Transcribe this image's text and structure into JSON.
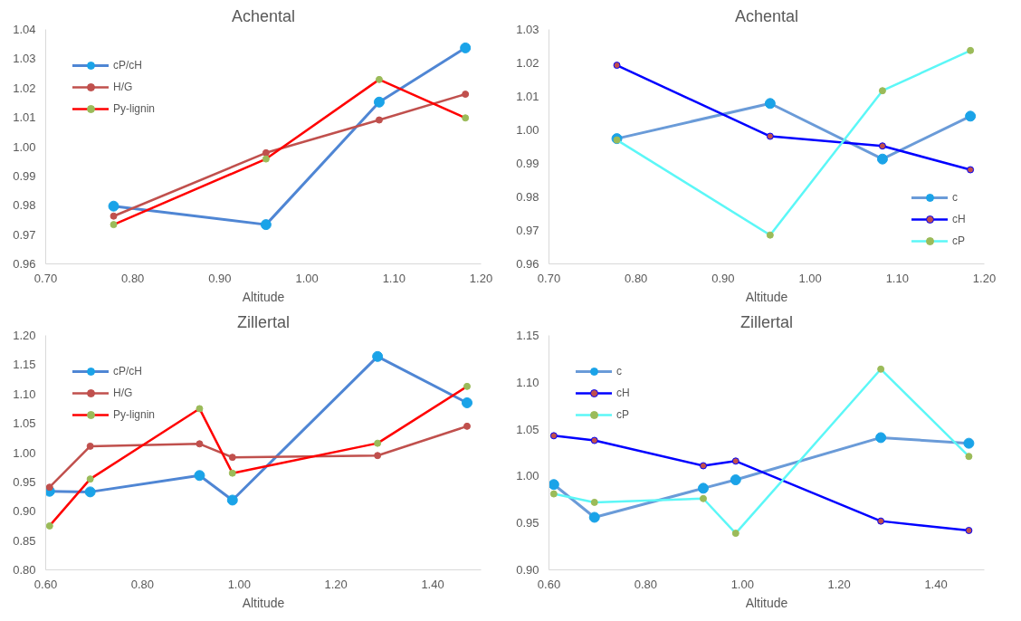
{
  "chart_data": [
    {
      "type": "line",
      "title": "Achental",
      "xlabel": "Altitude",
      "x": [
        0.778,
        0.953,
        1.083,
        1.182
      ],
      "xlim": [
        0.7,
        1.2
      ],
      "xticks": [
        {
          "value": 0.7,
          "label": "0.70"
        },
        {
          "value": 0.8,
          "label": "0.80"
        },
        {
          "value": 0.9,
          "label": "0.90"
        },
        {
          "value": 1.0,
          "label": "1.00"
        },
        {
          "value": 1.1,
          "label": "1.10"
        },
        {
          "value": 1.2,
          "label": "1.20"
        }
      ],
      "ylim": [
        0.96,
        1.04
      ],
      "yticks": [
        {
          "value": 0.96,
          "label": "0.96"
        },
        {
          "value": 0.97,
          "label": "0.97"
        },
        {
          "value": 0.98,
          "label": "0.98"
        },
        {
          "value": 0.99,
          "label": "0.99"
        },
        {
          "value": 1.0,
          "label": "1.00"
        },
        {
          "value": 1.01,
          "label": "1.01"
        },
        {
          "value": 1.02,
          "label": "1.02"
        },
        {
          "value": 1.03,
          "label": "1.03"
        },
        {
          "value": 1.04,
          "label": "1.04"
        }
      ],
      "grid": false,
      "legend": "top left",
      "marker": "circle",
      "line_style": "solid",
      "series": [
        {
          "name": "cP/cH",
          "color": "#4f86d4",
          "colors": [
            "#1aa3e8",
            "#1aa3e8",
            "#1aa3e8",
            "#1aa3e8"
          ],
          "values": [
            0.9797,
            0.9734,
            1.0152,
            1.0337
          ]
        },
        {
          "name": "H/G",
          "color": "#c0504d",
          "colors": [
            "#c0504d",
            "#c0504d",
            "#c0504d",
            "#c0504d"
          ],
          "values": [
            0.9763,
            0.9979,
            1.0091,
            1.0179
          ]
        },
        {
          "name": "Py-lignin",
          "color": "#ff0000",
          "colors": [
            "#9bbb59",
            "#9bbb59",
            "#9bbb59",
            "#9bbb59"
          ],
          "values": [
            0.9734,
            0.9958,
            1.0229,
            1.0098
          ]
        }
      ]
    },
    {
      "type": "line",
      "title": "Achental",
      "xlabel": "Altitude",
      "x": [
        0.778,
        0.954,
        1.083,
        1.184
      ],
      "xlim": [
        0.7,
        1.2
      ],
      "xticks": [
        {
          "value": 0.7,
          "label": "0.70"
        },
        {
          "value": 0.8,
          "label": "0.80"
        },
        {
          "value": 0.9,
          "label": "0.90"
        },
        {
          "value": 1.0,
          "label": "1.00"
        },
        {
          "value": 1.1,
          "label": "1.10"
        },
        {
          "value": 1.2,
          "label": "1.20"
        }
      ],
      "ylim": [
        0.96,
        1.03
      ],
      "yticks": [
        {
          "value": 0.96,
          "label": "0.96"
        },
        {
          "value": 0.97,
          "label": "0.97"
        },
        {
          "value": 0.98,
          "label": "0.98"
        },
        {
          "value": 0.99,
          "label": "0.99"
        },
        {
          "value": 1.0,
          "label": "1.00"
        },
        {
          "value": 1.01,
          "label": "1.01"
        },
        {
          "value": 1.02,
          "label": "1.02"
        },
        {
          "value": 1.03,
          "label": "1.03"
        }
      ],
      "grid": false,
      "legend": "bottom right",
      "marker": "circle",
      "line_style": "solid",
      "series": [
        {
          "name": "c",
          "color": "#6a9bd8",
          "colors": [
            "#1aa3e8",
            "#1aa3e8",
            "#1aa3e8",
            "#1aa3e8"
          ],
          "values": [
            0.9974,
            1.0079,
            0.9913,
            1.0041
          ]
        },
        {
          "name": "cH",
          "color": "#0000ff",
          "colors": [
            "#c0504d",
            "#c0504d",
            "#c0504d",
            "#c0504d"
          ],
          "values": [
            1.0193,
            0.9981,
            0.9952,
            0.9881
          ]
        },
        {
          "name": "cP",
          "color": "#5cf7f7",
          "colors": [
            "#9bbb59",
            "#9bbb59",
            "#9bbb59",
            "#9bbb59"
          ],
          "values": [
            0.997,
            0.9686,
            1.0117,
            1.0237
          ]
        }
      ]
    },
    {
      "type": "line",
      "title": "Zillertal",
      "xlabel": "Altitude",
      "x": [
        0.608,
        0.692,
        0.918,
        0.986,
        1.286,
        1.471
      ],
      "xlim": [
        0.6,
        1.5
      ],
      "xticks": [
        {
          "value": 0.6,
          "label": "0.60"
        },
        {
          "value": 0.8,
          "label": "0.80"
        },
        {
          "value": 1.0,
          "label": "1.00"
        },
        {
          "value": 1.2,
          "label": "1.20"
        },
        {
          "value": 1.4,
          "label": "1.40"
        }
      ],
      "ylim": [
        0.8,
        1.2
      ],
      "yticks": [
        {
          "value": 0.8,
          "label": "0.80"
        },
        {
          "value": 0.85,
          "label": "0.85"
        },
        {
          "value": 0.9,
          "label": "0.90"
        },
        {
          "value": 0.95,
          "label": "0.95"
        },
        {
          "value": 1.0,
          "label": "1.00"
        },
        {
          "value": 1.05,
          "label": "1.05"
        },
        {
          "value": 1.1,
          "label": "1.10"
        },
        {
          "value": 1.15,
          "label": "1.15"
        },
        {
          "value": 1.2,
          "label": "1.20"
        }
      ],
      "grid": false,
      "legend": "top left",
      "marker": "circle",
      "line_style": "solid",
      "series": [
        {
          "name": "cP/cH",
          "color": "#4f86d4",
          "colors": [
            "#1aa3e8",
            "#1aa3e8",
            "#1aa3e8",
            "#1aa3e8",
            "#1aa3e8",
            "#1aa3e8"
          ],
          "values": [
            0.934,
            0.933,
            0.961,
            0.919,
            1.164,
            1.085
          ]
        },
        {
          "name": "H/G",
          "color": "#c0504d",
          "colors": [
            "#c0504d",
            "#c0504d",
            "#c0504d",
            "#c0504d",
            "#c0504d",
            "#c0504d"
          ],
          "values": [
            0.941,
            1.011,
            1.015,
            0.992,
            0.995,
            1.045
          ]
        },
        {
          "name": "Py-lignin",
          "color": "#ff0000",
          "colors": [
            "#9bbb59",
            "#9bbb59",
            "#9bbb59",
            "#9bbb59",
            "#9bbb59",
            "#9bbb59"
          ],
          "values": [
            0.875,
            0.955,
            1.075,
            0.965,
            1.016,
            1.113
          ]
        }
      ]
    },
    {
      "type": "line",
      "title": "Zillertal",
      "xlabel": "Altitude",
      "x": [
        0.61,
        0.694,
        0.919,
        0.986,
        1.286,
        1.468
      ],
      "xlim": [
        0.6,
        1.5
      ],
      "xticks": [
        {
          "value": 0.6,
          "label": "0.60"
        },
        {
          "value": 0.8,
          "label": "0.80"
        },
        {
          "value": 1.0,
          "label": "1.00"
        },
        {
          "value": 1.2,
          "label": "1.20"
        },
        {
          "value": 1.4,
          "label": "1.40"
        }
      ],
      "ylim": [
        0.9,
        1.15
      ],
      "yticks": [
        {
          "value": 0.9,
          "label": "0.90"
        },
        {
          "value": 0.95,
          "label": "0.95"
        },
        {
          "value": 1.0,
          "label": "1.00"
        },
        {
          "value": 1.05,
          "label": "1.05"
        },
        {
          "value": 1.1,
          "label": "1.10"
        },
        {
          "value": 1.15,
          "label": "1.15"
        }
      ],
      "grid": false,
      "legend": "top left",
      "marker": "circle",
      "line_style": "solid",
      "series": [
        {
          "name": "c",
          "color": "#6a9bd8",
          "colors": [
            "#1aa3e8",
            "#1aa3e8",
            "#1aa3e8",
            "#1aa3e8",
            "#1aa3e8",
            "#1aa3e8"
          ],
          "values": [
            0.991,
            0.956,
            0.987,
            0.996,
            1.041,
            1.035
          ]
        },
        {
          "name": "cH",
          "color": "#0000ff",
          "colors": [
            "#c0504d",
            "#c0504d",
            "#c0504d",
            "#c0504d",
            "#c0504d",
            "#c0504d"
          ],
          "values": [
            1.043,
            1.038,
            1.011,
            1.016,
            0.952,
            0.942
          ]
        },
        {
          "name": "cP",
          "color": "#5cf7f7",
          "colors": [
            "#9bbb59",
            "#9bbb59",
            "#9bbb59",
            "#9bbb59",
            "#9bbb59",
            "#9bbb59"
          ],
          "values": [
            0.981,
            0.972,
            0.976,
            0.939,
            1.114,
            1.021
          ]
        }
      ]
    }
  ]
}
